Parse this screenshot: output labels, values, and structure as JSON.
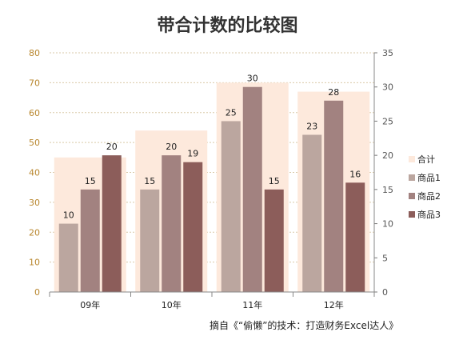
{
  "chart_data": {
    "type": "bar",
    "title": "带合计数的比较图",
    "categories": [
      "09年",
      "10年",
      "11年",
      "12年"
    ],
    "series": [
      {
        "name": "合计",
        "axis": "left",
        "values": [
          45,
          54,
          70,
          67
        ],
        "color": "#fde9dc"
      },
      {
        "name": "商品1",
        "axis": "right",
        "values": [
          10,
          15,
          25,
          23
        ],
        "color": "#bba69f"
      },
      {
        "name": "商品2",
        "axis": "right",
        "values": [
          15,
          20,
          30,
          28
        ],
        "color": "#a28280"
      },
      {
        "name": "商品3",
        "axis": "right",
        "values": [
          20,
          19,
          15,
          16
        ],
        "color": "#8c5d5a"
      }
    ],
    "y_left": {
      "min": 0,
      "max": 80,
      "ticks": [
        0,
        10,
        20,
        30,
        40,
        50,
        60,
        70,
        80
      ]
    },
    "y_right": {
      "min": 0,
      "max": 35,
      "ticks": [
        0,
        5,
        10,
        15,
        20,
        25,
        30,
        35
      ]
    },
    "grid": true,
    "legend_position": "right"
  },
  "source_text": "摘自《“偷懒”的技术：打造财务Excel达人》"
}
